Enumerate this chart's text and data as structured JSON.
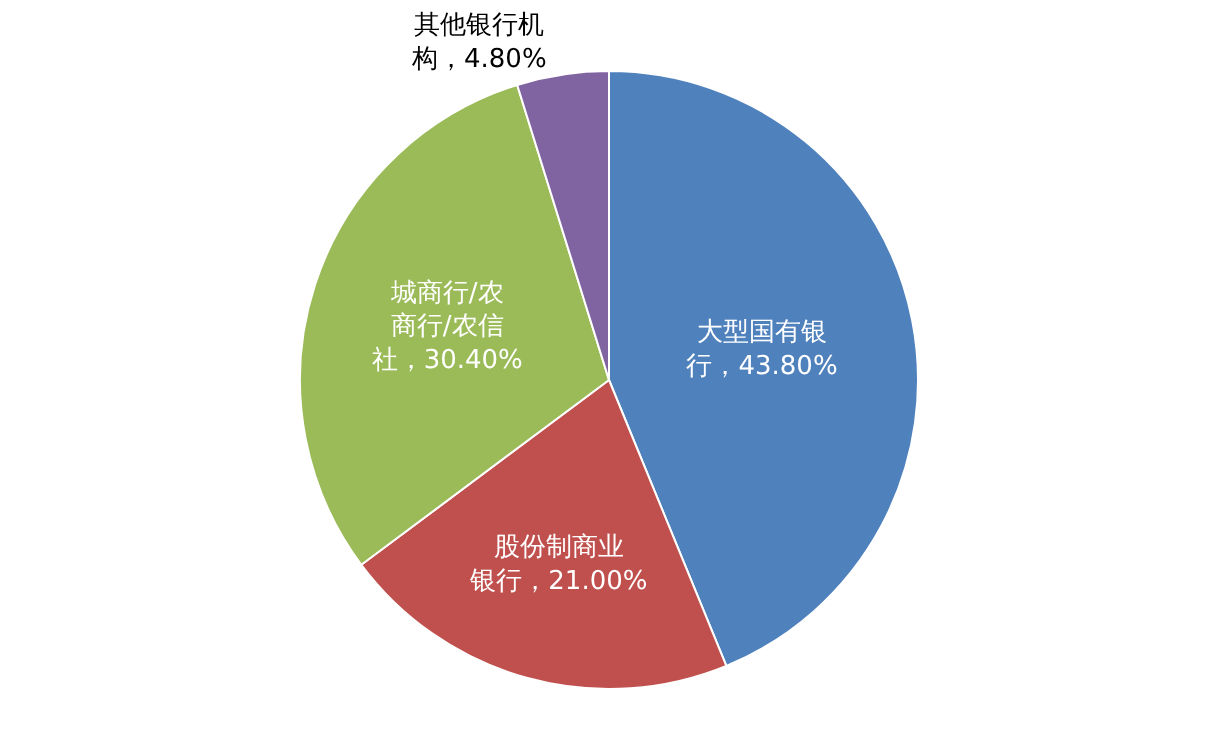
{
  "chart_data": {
    "type": "pie",
    "categories": [
      "大型国有银行",
      "股份制商业银行",
      "城商行/农商行/农信社",
      "其他银行机构"
    ],
    "values": [
      43.8,
      21.0,
      30.4,
      4.8
    ],
    "colors": [
      "#4f81bd",
      "#c0504d",
      "#9bbb59",
      "#8064a2"
    ],
    "value_labels": [
      "43.80%",
      "21.00%",
      "30.40%",
      "4.80%"
    ]
  }
}
